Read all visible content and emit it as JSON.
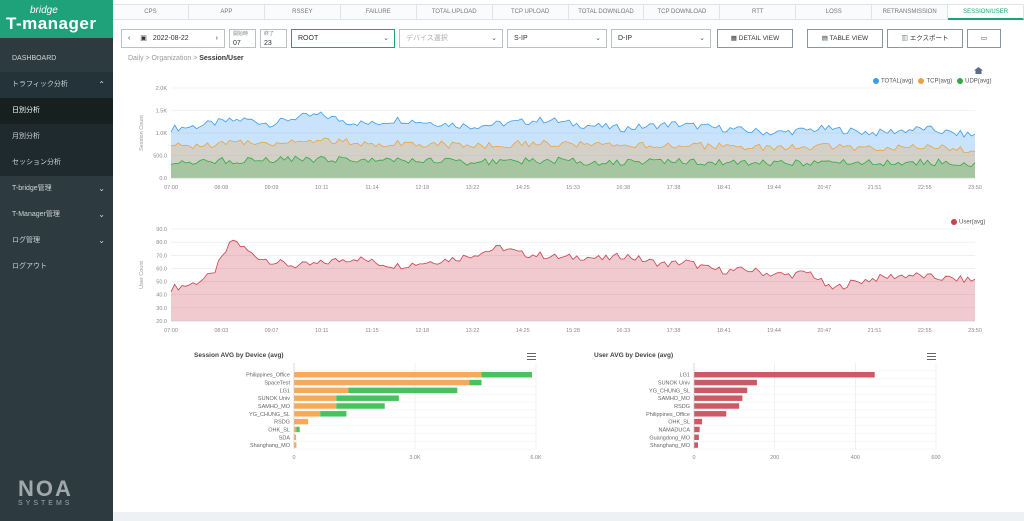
{
  "app": {
    "logo_top": "bridge",
    "logo_main": "T-manager",
    "brand": "NOA",
    "brand_sub": "SYSTEMS"
  },
  "sidebar": {
    "items": [
      {
        "label": "DASHBOARD"
      },
      {
        "label": "トラフィック分析",
        "expanded": true
      },
      {
        "label": "日別分析",
        "selected": true
      },
      {
        "label": "月別分析"
      },
      {
        "label": "セッション分析"
      },
      {
        "label": "T-bridge管理"
      },
      {
        "label": "T-Manager管理"
      },
      {
        "label": "ログ管理"
      },
      {
        "label": "ログアウト"
      }
    ]
  },
  "tabs": [
    "CPS",
    "APP",
    "RSSEY",
    "FAILURE",
    "TOTAL UPLOAD",
    "TCP UPLOAD",
    "TOTAL DOWNLOAD",
    "TCP DOWNLOAD",
    "RTT",
    "LOSS",
    "RETRANSMISSION",
    "SESSION/USER"
  ],
  "active_tab": "SESSION/USER",
  "toolbar": {
    "date": "2022-08-22",
    "from_label": "開始時",
    "from_value": "07",
    "to_label": "終了",
    "to_value": "23",
    "org": "ROOT",
    "device_placeholder": "デバイス選択",
    "src_ip": "S-IP",
    "dst_ip": "D-IP",
    "detail_view": "DETAIL VIEW",
    "table_view": "TABLE VIEW",
    "export": "エクスポート"
  },
  "breadcrumb": [
    "Daily",
    "Organization",
    "Session/User"
  ],
  "chart_data": [
    {
      "type": "area",
      "title": "",
      "ylabel": "Session Count",
      "ylim": [
        0,
        2000
      ],
      "y_ticks": [
        "0.0",
        "500.0",
        "1.0K",
        "1.5K",
        "2.0K"
      ],
      "x_ticks": [
        "07:00",
        "08:08",
        "09:09",
        "10:11",
        "11:14",
        "12:18",
        "13:22",
        "14:25",
        "15:33",
        "16:38",
        "17:38",
        "18:41",
        "19:44",
        "20:47",
        "21:51",
        "22:55",
        "23:50"
      ],
      "legend": "top-right",
      "series": [
        {
          "name": "TOTAL(avg)",
          "color": "#3b9cf0",
          "values": [
            1100,
            1150,
            1250,
            1300,
            1200,
            1350,
            1400,
            1250,
            1200,
            1300,
            1250,
            1200,
            1150,
            1200,
            1250,
            1300,
            1200,
            1150,
            1100,
            1150,
            1200,
            1150,
            1100,
            1050,
            1000,
            1050,
            1100,
            1050,
            1000,
            1050,
            1100,
            1000,
            950
          ]
        },
        {
          "name": "TCP(avg)",
          "color": "#f0a040",
          "values": [
            700,
            720,
            760,
            800,
            780,
            820,
            850,
            800,
            760,
            780,
            760,
            740,
            720,
            740,
            760,
            780,
            740,
            720,
            700,
            720,
            740,
            720,
            700,
            680,
            650,
            680,
            700,
            680,
            650,
            700,
            720,
            650,
            620
          ]
        },
        {
          "name": "UDP(avg)",
          "color": "#2eaa40",
          "values": [
            350,
            370,
            380,
            400,
            390,
            410,
            420,
            400,
            380,
            390,
            380,
            370,
            360,
            370,
            380,
            390,
            370,
            360,
            350,
            360,
            370,
            360,
            350,
            340,
            330,
            340,
            350,
            340,
            330,
            340,
            350,
            330,
            320
          ]
        }
      ]
    },
    {
      "type": "area",
      "title": "",
      "ylabel": "User Count",
      "ylim": [
        20,
        90
      ],
      "y_ticks": [
        "20.0",
        "30.0",
        "40.0",
        "50.0",
        "60.0",
        "70.0",
        "80.0",
        "90.0"
      ],
      "x_ticks": [
        "07:00",
        "08:03",
        "09:07",
        "10:11",
        "11:15",
        "12:18",
        "13:22",
        "14:25",
        "15:28",
        "16:33",
        "17:38",
        "18:41",
        "19:44",
        "20:47",
        "21:51",
        "22:55",
        "23:50"
      ],
      "legend": "top-right",
      "series": [
        {
          "name": "User(avg)",
          "color": "#c9404e",
          "values": [
            45,
            48,
            55,
            82,
            70,
            65,
            62,
            63,
            66,
            68,
            64,
            62,
            64,
            66,
            68,
            72,
            76,
            71,
            70,
            68,
            69,
            67,
            70,
            66,
            63,
            65,
            60,
            58,
            59,
            56,
            55,
            57,
            44,
            49,
            52,
            54,
            55,
            53,
            52,
            51
          ]
        }
      ]
    },
    {
      "type": "bar",
      "title": "Session AVG by Device (avg)",
      "orientation": "horizontal",
      "stacked": true,
      "categories": [
        "",
        "Philippines_Office",
        "SpaceTest",
        "LG1",
        "SUNOK Univ",
        "SAMHO_MO",
        "YG_CHUNG_SL",
        "RSDG",
        "OHK_SL",
        "SDA",
        "Shanghang_MO"
      ],
      "x_ticks": [
        "0",
        "3.0K",
        "6.0K"
      ],
      "xlim": [
        0,
        6000
      ],
      "series": [
        {
          "name": "TCP",
          "color": "#f5aa5a",
          "values": [
            0,
            4650,
            4350,
            1350,
            1050,
            1050,
            650,
            350,
            60,
            50,
            60
          ]
        },
        {
          "name": "UDP",
          "color": "#47c25e",
          "values": [
            0,
            1250,
            300,
            2700,
            1550,
            1200,
            650,
            0,
            80,
            0,
            0
          ]
        }
      ]
    },
    {
      "type": "bar",
      "title": "User AVG by Device (avg)",
      "orientation": "horizontal",
      "categories": [
        "",
        "LG1",
        "SUNOK Univ",
        "YG_CHUNG_SL",
        "SAMHO_MO",
        "RSDG",
        "Philippines_Office",
        "OHK_SL",
        "NAMADUCA",
        "Guangdong_MO",
        "Shanghang_MO"
      ],
      "x_ticks": [
        "0",
        "200",
        "400",
        "600"
      ],
      "xlim": [
        0,
        600
      ],
      "series": [
        {
          "name": "User",
          "color": "#cc5a66",
          "values": [
            0,
            448,
            156,
            132,
            120,
            112,
            80,
            20,
            14,
            12,
            10
          ]
        }
      ]
    }
  ]
}
